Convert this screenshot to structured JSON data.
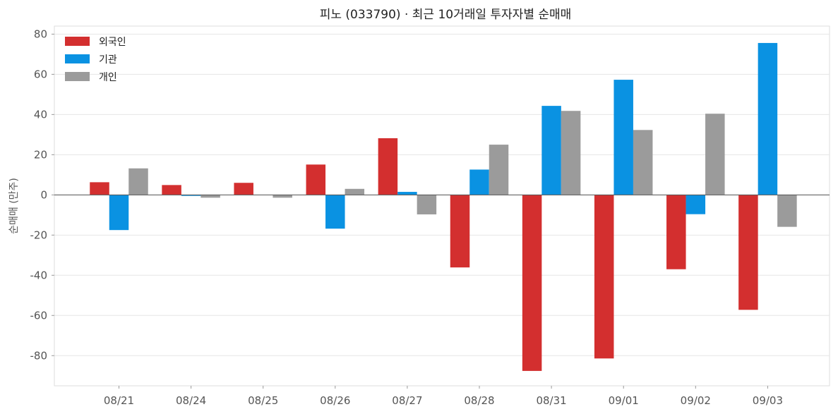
{
  "chart_data": {
    "type": "bar",
    "title": "피노 (033790) · 최근 10거래일 투자자별 순매매",
    "xlabel": "",
    "ylabel": "순매매 (만주)",
    "categories": [
      "08/21",
      "08/24",
      "08/25",
      "08/26",
      "08/27",
      "08/28",
      "08/31",
      "09/01",
      "09/02",
      "09/03"
    ],
    "ylim": [
      -95,
      84
    ],
    "yticks": [
      -80,
      -60,
      -40,
      -20,
      0,
      20,
      40,
      60,
      80
    ],
    "grid": true,
    "legend_position": "top-left",
    "series": [
      {
        "name": "외국인",
        "color": "#d32f2f",
        "values": [
          6.3,
          4.9,
          6.0,
          15.1,
          28.2,
          -36.1,
          -87.6,
          -81.4,
          -37.0,
          -57.2
        ]
      },
      {
        "name": "기관",
        "color": "#0a92e2",
        "values": [
          -17.5,
          -0.5,
          0,
          -16.8,
          1.5,
          12.6,
          44.3,
          57.3,
          -9.6,
          75.6
        ]
      },
      {
        "name": "개인",
        "color": "#9b9b9b",
        "values": [
          13.2,
          -1.4,
          -1.4,
          3.0,
          -9.7,
          25.0,
          41.8,
          32.3,
          40.4,
          -15.9
        ]
      }
    ]
  }
}
